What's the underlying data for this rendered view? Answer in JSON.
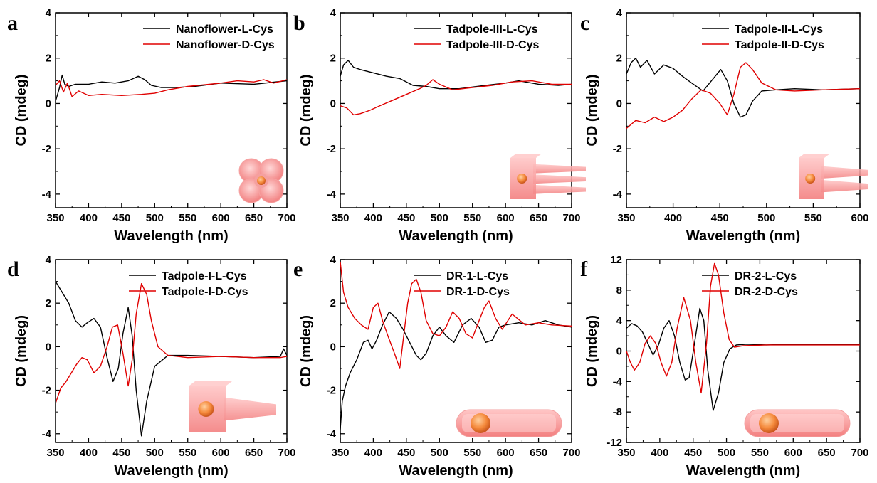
{
  "chart_data": [
    {
      "panel": "a",
      "type": "line",
      "xlabel": "Wavelength (nm)",
      "ylabel": "CD (mdeg)",
      "xlim": [
        350,
        700
      ],
      "ylim": [
        -4.6,
        4
      ],
      "xticks": [
        350,
        400,
        450,
        500,
        550,
        600,
        650,
        700
      ],
      "yticks": [
        -4,
        -2,
        0,
        2,
        4
      ],
      "legend": "top-right",
      "inset_icon": "nanoflower-icon",
      "series": [
        {
          "name": "Nanoflower-L-Cys",
          "color": "#000000",
          "x": [
            350,
            352,
            356,
            360,
            364,
            370,
            380,
            400,
            420,
            440,
            460,
            475,
            485,
            495,
            510,
            530,
            560,
            600,
            650,
            700
          ],
          "y": [
            0.1,
            0.3,
            0.7,
            1.25,
            0.85,
            0.75,
            0.85,
            0.85,
            0.95,
            0.9,
            1.0,
            1.2,
            1.05,
            0.8,
            0.7,
            0.7,
            0.75,
            0.9,
            0.85,
            1.0
          ]
        },
        {
          "name": "Nanoflower-D-Cys",
          "color": "#e00000",
          "x": [
            350,
            356,
            362,
            368,
            375,
            385,
            400,
            420,
            450,
            480,
            500,
            520,
            550,
            600,
            625,
            650,
            665,
            680,
            700
          ],
          "y": [
            0.8,
            1.0,
            0.5,
            0.9,
            0.3,
            0.55,
            0.35,
            0.4,
            0.35,
            0.4,
            0.45,
            0.6,
            0.75,
            0.9,
            1.0,
            0.95,
            1.05,
            0.9,
            1.05
          ]
        }
      ]
    },
    {
      "panel": "b",
      "type": "line",
      "xlabel": "Wavelength (nm)",
      "ylabel": "CD (mdeg)",
      "xlim": [
        350,
        700
      ],
      "ylim": [
        -4.6,
        4
      ],
      "xticks": [
        350,
        400,
        450,
        500,
        550,
        600,
        650,
        700
      ],
      "yticks": [
        -4,
        -2,
        0,
        2,
        4
      ],
      "legend": "top-right",
      "inset_icon": "tadpole-three-tails-icon",
      "series": [
        {
          "name": "Tadpole-III-L-Cys",
          "color": "#000000",
          "x": [
            350,
            355,
            362,
            370,
            380,
            400,
            420,
            440,
            460,
            480,
            500,
            530,
            570,
            600,
            620,
            650,
            680,
            700
          ],
          "y": [
            1.2,
            1.7,
            1.9,
            1.6,
            1.5,
            1.35,
            1.2,
            1.1,
            0.8,
            0.75,
            0.65,
            0.65,
            0.8,
            0.9,
            1.0,
            0.85,
            0.8,
            0.85
          ]
        },
        {
          "name": "Tadpole-III-D-Cys",
          "color": "#e00000",
          "x": [
            350,
            360,
            370,
            380,
            395,
            410,
            430,
            450,
            470,
            480,
            490,
            500,
            520,
            550,
            580,
            610,
            640,
            670,
            700
          ],
          "y": [
            -0.1,
            -0.2,
            -0.5,
            -0.45,
            -0.3,
            -0.1,
            0.15,
            0.4,
            0.65,
            0.8,
            1.05,
            0.85,
            0.6,
            0.7,
            0.8,
            0.95,
            1.0,
            0.85,
            0.85
          ]
        }
      ]
    },
    {
      "panel": "c",
      "type": "line",
      "xlabel": "Wavelength (nm)",
      "ylabel": "CD (mdeg)",
      "xlim": [
        350,
        600
      ],
      "ylim": [
        -4.6,
        4
      ],
      "xticks": [
        350,
        400,
        450,
        500,
        550,
        600
      ],
      "yticks": [
        -4,
        -2,
        0,
        2,
        4
      ],
      "legend": "top-right",
      "inset_icon": "tadpole-two-tails-icon",
      "series": [
        {
          "name": "Tadpole-II-L-Cys",
          "color": "#000000",
          "x": [
            350,
            355,
            360,
            365,
            372,
            380,
            390,
            400,
            410,
            420,
            432,
            443,
            451,
            458,
            465,
            472,
            478,
            485,
            495,
            510,
            530,
            560,
            600
          ],
          "y": [
            1.3,
            1.8,
            2.0,
            1.6,
            1.9,
            1.3,
            1.7,
            1.55,
            1.2,
            0.9,
            0.55,
            1.1,
            1.5,
            1.0,
            0.0,
            -0.6,
            -0.5,
            0.1,
            0.55,
            0.6,
            0.65,
            0.6,
            0.65
          ]
        },
        {
          "name": "Tadpole-II-D-Cys",
          "color": "#e00000",
          "x": [
            350,
            360,
            370,
            380,
            390,
            400,
            410,
            420,
            430,
            440,
            450,
            458,
            465,
            472,
            478,
            485,
            495,
            510,
            530,
            560,
            600
          ],
          "y": [
            -1.1,
            -0.75,
            -0.85,
            -0.6,
            -0.8,
            -0.6,
            -0.3,
            0.2,
            0.6,
            0.45,
            0.0,
            -0.5,
            0.4,
            1.6,
            1.8,
            1.5,
            0.9,
            0.6,
            0.55,
            0.6,
            0.65
          ]
        }
      ]
    },
    {
      "panel": "d",
      "type": "line",
      "xlabel": "Wavelength (nm)",
      "ylabel": "CD (mdeg)",
      "xlim": [
        350,
        700
      ],
      "ylim": [
        -4.4,
        4
      ],
      "xticks": [
        350,
        400,
        450,
        500,
        550,
        600,
        650,
        700
      ],
      "yticks": [
        -4,
        -2,
        0,
        2,
        4
      ],
      "legend": "top-right",
      "inset_icon": "tadpole-one-tail-icon",
      "series": [
        {
          "name": "Tadpole-I-L-Cys",
          "color": "#000000",
          "x": [
            350,
            360,
            370,
            380,
            390,
            398,
            408,
            418,
            428,
            437,
            445,
            452,
            460,
            466,
            472,
            480,
            488,
            500,
            520,
            550,
            600,
            650,
            690,
            695,
            700
          ],
          "y": [
            3.0,
            2.5,
            2.0,
            1.2,
            0.9,
            1.1,
            1.3,
            0.9,
            -0.5,
            -1.6,
            -1.0,
            0.6,
            1.8,
            0.5,
            -2.0,
            -4.1,
            -2.5,
            -0.9,
            -0.4,
            -0.4,
            -0.45,
            -0.5,
            -0.45,
            -0.1,
            -0.4
          ]
        },
        {
          "name": "Tadpole-I-D-Cys",
          "color": "#e00000",
          "x": [
            350,
            358,
            366,
            374,
            382,
            390,
            398,
            408,
            418,
            428,
            436,
            444,
            452,
            460,
            466,
            472,
            480,
            488,
            495,
            505,
            520,
            550,
            600,
            650,
            690,
            700
          ],
          "y": [
            -2.6,
            -1.9,
            -1.6,
            -1.2,
            -0.8,
            -0.5,
            -0.6,
            -1.2,
            -0.9,
            0.0,
            0.9,
            1.0,
            -0.3,
            -1.8,
            -0.6,
            1.5,
            2.9,
            2.4,
            1.2,
            0.0,
            -0.4,
            -0.5,
            -0.45,
            -0.5,
            -0.5,
            -0.45
          ]
        }
      ]
    },
    {
      "panel": "e",
      "type": "line",
      "xlabel": "Wavelength (nm)",
      "ylabel": "CD (mdeg)",
      "xlim": [
        350,
        700
      ],
      "ylim": [
        -4.4,
        4
      ],
      "xticks": [
        350,
        400,
        450,
        500,
        550,
        600,
        650,
        700
      ],
      "yticks": [
        -4,
        -2,
        0,
        2,
        4
      ],
      "legend": "top-right",
      "inset_icon": "dumbbell-rod-icon",
      "series": [
        {
          "name": "DR-1-L-Cys",
          "color": "#000000",
          "x": [
            350,
            353,
            358,
            365,
            375,
            385,
            392,
            398,
            405,
            414,
            424,
            435,
            445,
            455,
            465,
            472,
            480,
            490,
            500,
            510,
            522,
            535,
            548,
            560,
            570,
            580,
            590,
            600,
            620,
            640,
            660,
            680,
            700
          ],
          "y": [
            -3.8,
            -2.5,
            -1.8,
            -1.2,
            -0.6,
            0.2,
            0.3,
            -0.1,
            0.3,
            1.0,
            1.6,
            1.3,
            0.8,
            0.2,
            -0.4,
            -0.6,
            -0.3,
            0.5,
            0.9,
            0.5,
            0.2,
            1.0,
            1.3,
            0.9,
            0.2,
            0.3,
            0.9,
            1.0,
            1.1,
            1.0,
            1.2,
            1.0,
            0.9
          ]
        },
        {
          "name": "DR-1-D-Cys",
          "color": "#e00000",
          "x": [
            350,
            355,
            362,
            372,
            382,
            392,
            400,
            407,
            414,
            422,
            432,
            440,
            446,
            452,
            458,
            465,
            472,
            480,
            490,
            500,
            510,
            520,
            530,
            540,
            550,
            560,
            568,
            575,
            585,
            595,
            610,
            630,
            650,
            670,
            700
          ],
          "y": [
            3.9,
            2.5,
            1.8,
            1.3,
            1.0,
            0.8,
            1.8,
            2.0,
            1.2,
            0.5,
            -0.3,
            -1.0,
            0.5,
            2.0,
            2.9,
            3.1,
            2.5,
            1.2,
            0.6,
            0.5,
            0.9,
            1.6,
            1.3,
            0.6,
            0.4,
            1.2,
            1.8,
            2.1,
            1.3,
            0.8,
            1.5,
            1.0,
            1.1,
            1.0,
            0.95
          ]
        }
      ]
    },
    {
      "panel": "f",
      "type": "line",
      "xlabel": "Wavelength (nm)",
      "ylabel": "CD (mdeg)",
      "xlim": [
        350,
        700
      ],
      "ylim": [
        -12,
        12
      ],
      "xticks": [
        350,
        400,
        450,
        500,
        550,
        600,
        650,
        700
      ],
      "yticks": [
        -12,
        -8,
        -4,
        0,
        4,
        8,
        12
      ],
      "legend": "top-right",
      "inset_icon": "dumbbell-rod-icon",
      "series": [
        {
          "name": "DR-2-L-Cys",
          "color": "#000000",
          "x": [
            350,
            358,
            366,
            374,
            382,
            390,
            398,
            406,
            414,
            422,
            430,
            438,
            444,
            452,
            460,
            466,
            472,
            480,
            488,
            496,
            505,
            515,
            530,
            560,
            600,
            650,
            700
          ],
          "y": [
            3.0,
            3.6,
            3.3,
            2.5,
            1.0,
            -0.5,
            0.8,
            3.0,
            4.0,
            2.0,
            -1.5,
            -3.8,
            -3.5,
            1.0,
            5.6,
            4.0,
            -2.5,
            -7.8,
            -5.5,
            -1.5,
            0.3,
            0.8,
            0.9,
            0.8,
            0.9,
            0.9,
            0.9
          ]
        },
        {
          "name": "DR-2-D-Cys",
          "color": "#e00000",
          "x": [
            350,
            356,
            362,
            370,
            378,
            386,
            394,
            402,
            410,
            418,
            426,
            436,
            446,
            454,
            462,
            470,
            476,
            482,
            488,
            496,
            504,
            512,
            525,
            560,
            600,
            650,
            700
          ],
          "y": [
            0.0,
            -1.5,
            -2.5,
            -1.5,
            1.0,
            2.0,
            1.0,
            -1.5,
            -3.3,
            -1.5,
            3.0,
            7.0,
            4.0,
            -1.5,
            -5.5,
            1.0,
            8.5,
            11.5,
            10.0,
            5.0,
            1.5,
            0.5,
            0.7,
            0.8,
            0.8,
            0.8,
            0.8
          ]
        }
      ]
    }
  ]
}
